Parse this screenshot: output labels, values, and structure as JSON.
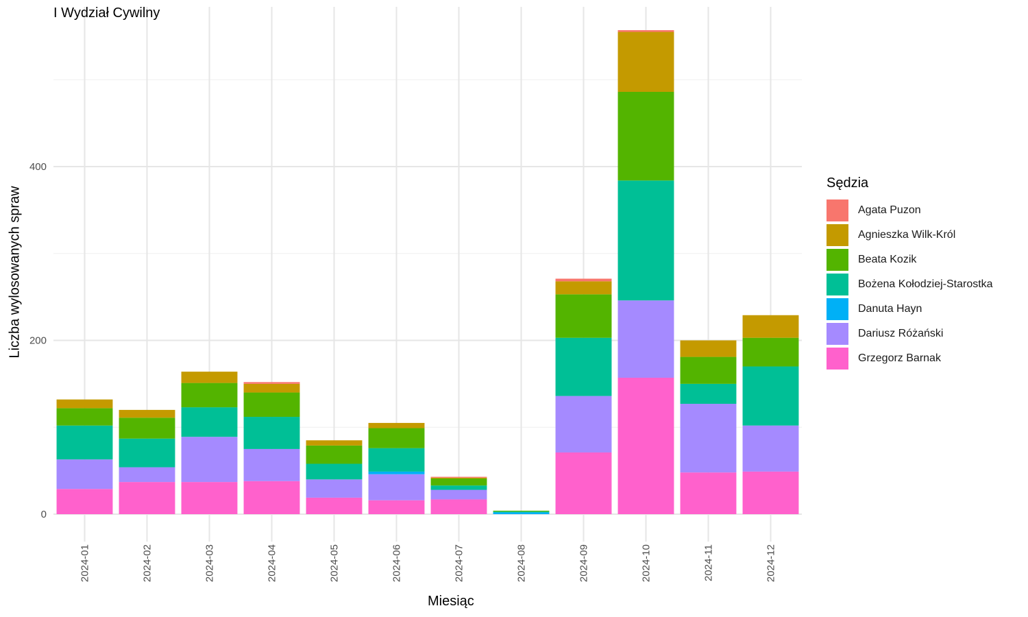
{
  "chart_data": {
    "type": "bar",
    "stacked": true,
    "title": "I Wydział Cywilny",
    "xlabel": "Miesiąc",
    "ylabel": "Liczba wylosowanych spraw",
    "ylim": [
      -40,
      580
    ],
    "yticks": [
      0,
      200,
      400
    ],
    "grid": true,
    "legend_title": "Sędzia",
    "legend_position": "right",
    "categories": [
      "2024-01",
      "2024-02",
      "2024-03",
      "2024-04",
      "2024-05",
      "2024-06",
      "2024-07",
      "2024-08",
      "2024-09",
      "2024-10",
      "2024-11",
      "2024-12"
    ],
    "series": [
      {
        "name": "Grzegorz Barnak",
        "color": "#FF61CC",
        "values": [
          29,
          37,
          37,
          38,
          19,
          16,
          17,
          0,
          71,
          157,
          48,
          49
        ]
      },
      {
        "name": "Dariusz Różański",
        "color": "#A58AFF",
        "values": [
          34,
          17,
          52,
          37,
          21,
          30,
          11,
          0,
          65,
          89,
          79,
          53
        ]
      },
      {
        "name": "Danuta Hayn",
        "color": "#00B0F6",
        "values": [
          0,
          0,
          0,
          0,
          0,
          3,
          0,
          2,
          0,
          0,
          0,
          0
        ]
      },
      {
        "name": "Bożena Kołodziej-Starostka",
        "color": "#00BF96",
        "values": [
          39,
          33,
          34,
          37,
          18,
          27,
          5,
          1,
          67,
          138,
          23,
          68
        ]
      },
      {
        "name": "Beata Kozik",
        "color": "#53B400",
        "values": [
          20,
          24,
          28,
          28,
          21,
          23,
          8,
          1,
          50,
          102,
          31,
          33
        ]
      },
      {
        "name": "Agnieszka Wilk-Król",
        "color": "#C49A00",
        "values": [
          10,
          9,
          13,
          10,
          6,
          6,
          1,
          0,
          15,
          69,
          19,
          26
        ]
      },
      {
        "name": "Agata Puzon",
        "color": "#F8766D",
        "values": [
          0,
          0,
          0,
          2,
          0,
          0,
          1,
          0,
          3,
          2,
          0,
          0
        ]
      }
    ]
  }
}
